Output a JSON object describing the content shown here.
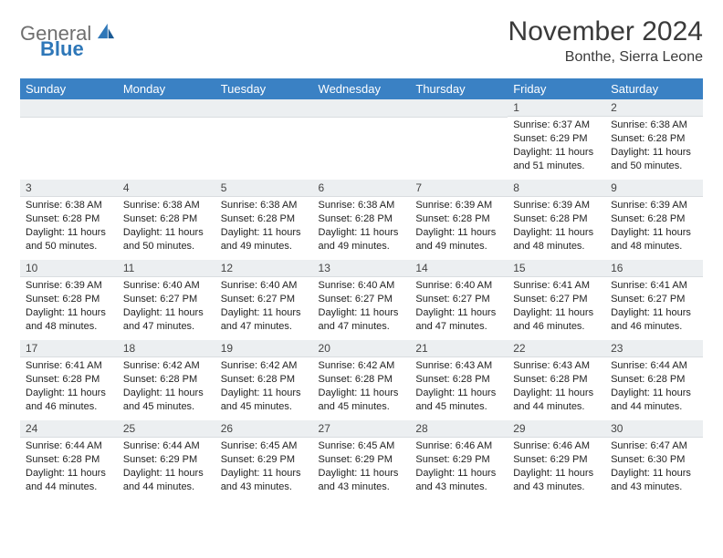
{
  "logo": {
    "word1": "General",
    "word2": "Blue"
  },
  "title": "November 2024",
  "subtitle": "Bonthe, Sierra Leone",
  "colors": {
    "header_bg": "#3a81c4",
    "header_text": "#ffffff",
    "daynum_bg": "#eceff1",
    "accent": "#2e77b8",
    "text": "#222222"
  },
  "weekdays": [
    "Sunday",
    "Monday",
    "Tuesday",
    "Wednesday",
    "Thursday",
    "Friday",
    "Saturday"
  ],
  "weeks": [
    [
      {
        "blank": true
      },
      {
        "blank": true
      },
      {
        "blank": true
      },
      {
        "blank": true
      },
      {
        "blank": true
      },
      {
        "day": "1",
        "sunrise": "Sunrise: 6:37 AM",
        "sunset": "Sunset: 6:29 PM",
        "day1": "Daylight: 11 hours",
        "day2": "and 51 minutes."
      },
      {
        "day": "2",
        "sunrise": "Sunrise: 6:38 AM",
        "sunset": "Sunset: 6:28 PM",
        "day1": "Daylight: 11 hours",
        "day2": "and 50 minutes."
      }
    ],
    [
      {
        "day": "3",
        "sunrise": "Sunrise: 6:38 AM",
        "sunset": "Sunset: 6:28 PM",
        "day1": "Daylight: 11 hours",
        "day2": "and 50 minutes."
      },
      {
        "day": "4",
        "sunrise": "Sunrise: 6:38 AM",
        "sunset": "Sunset: 6:28 PM",
        "day1": "Daylight: 11 hours",
        "day2": "and 50 minutes."
      },
      {
        "day": "5",
        "sunrise": "Sunrise: 6:38 AM",
        "sunset": "Sunset: 6:28 PM",
        "day1": "Daylight: 11 hours",
        "day2": "and 49 minutes."
      },
      {
        "day": "6",
        "sunrise": "Sunrise: 6:38 AM",
        "sunset": "Sunset: 6:28 PM",
        "day1": "Daylight: 11 hours",
        "day2": "and 49 minutes."
      },
      {
        "day": "7",
        "sunrise": "Sunrise: 6:39 AM",
        "sunset": "Sunset: 6:28 PM",
        "day1": "Daylight: 11 hours",
        "day2": "and 49 minutes."
      },
      {
        "day": "8",
        "sunrise": "Sunrise: 6:39 AM",
        "sunset": "Sunset: 6:28 PM",
        "day1": "Daylight: 11 hours",
        "day2": "and 48 minutes."
      },
      {
        "day": "9",
        "sunrise": "Sunrise: 6:39 AM",
        "sunset": "Sunset: 6:28 PM",
        "day1": "Daylight: 11 hours",
        "day2": "and 48 minutes."
      }
    ],
    [
      {
        "day": "10",
        "sunrise": "Sunrise: 6:39 AM",
        "sunset": "Sunset: 6:28 PM",
        "day1": "Daylight: 11 hours",
        "day2": "and 48 minutes."
      },
      {
        "day": "11",
        "sunrise": "Sunrise: 6:40 AM",
        "sunset": "Sunset: 6:27 PM",
        "day1": "Daylight: 11 hours",
        "day2": "and 47 minutes."
      },
      {
        "day": "12",
        "sunrise": "Sunrise: 6:40 AM",
        "sunset": "Sunset: 6:27 PM",
        "day1": "Daylight: 11 hours",
        "day2": "and 47 minutes."
      },
      {
        "day": "13",
        "sunrise": "Sunrise: 6:40 AM",
        "sunset": "Sunset: 6:27 PM",
        "day1": "Daylight: 11 hours",
        "day2": "and 47 minutes."
      },
      {
        "day": "14",
        "sunrise": "Sunrise: 6:40 AM",
        "sunset": "Sunset: 6:27 PM",
        "day1": "Daylight: 11 hours",
        "day2": "and 47 minutes."
      },
      {
        "day": "15",
        "sunrise": "Sunrise: 6:41 AM",
        "sunset": "Sunset: 6:27 PM",
        "day1": "Daylight: 11 hours",
        "day2": "and 46 minutes."
      },
      {
        "day": "16",
        "sunrise": "Sunrise: 6:41 AM",
        "sunset": "Sunset: 6:27 PM",
        "day1": "Daylight: 11 hours",
        "day2": "and 46 minutes."
      }
    ],
    [
      {
        "day": "17",
        "sunrise": "Sunrise: 6:41 AM",
        "sunset": "Sunset: 6:28 PM",
        "day1": "Daylight: 11 hours",
        "day2": "and 46 minutes."
      },
      {
        "day": "18",
        "sunrise": "Sunrise: 6:42 AM",
        "sunset": "Sunset: 6:28 PM",
        "day1": "Daylight: 11 hours",
        "day2": "and 45 minutes."
      },
      {
        "day": "19",
        "sunrise": "Sunrise: 6:42 AM",
        "sunset": "Sunset: 6:28 PM",
        "day1": "Daylight: 11 hours",
        "day2": "and 45 minutes."
      },
      {
        "day": "20",
        "sunrise": "Sunrise: 6:42 AM",
        "sunset": "Sunset: 6:28 PM",
        "day1": "Daylight: 11 hours",
        "day2": "and 45 minutes."
      },
      {
        "day": "21",
        "sunrise": "Sunrise: 6:43 AM",
        "sunset": "Sunset: 6:28 PM",
        "day1": "Daylight: 11 hours",
        "day2": "and 45 minutes."
      },
      {
        "day": "22",
        "sunrise": "Sunrise: 6:43 AM",
        "sunset": "Sunset: 6:28 PM",
        "day1": "Daylight: 11 hours",
        "day2": "and 44 minutes."
      },
      {
        "day": "23",
        "sunrise": "Sunrise: 6:44 AM",
        "sunset": "Sunset: 6:28 PM",
        "day1": "Daylight: 11 hours",
        "day2": "and 44 minutes."
      }
    ],
    [
      {
        "day": "24",
        "sunrise": "Sunrise: 6:44 AM",
        "sunset": "Sunset: 6:28 PM",
        "day1": "Daylight: 11 hours",
        "day2": "and 44 minutes."
      },
      {
        "day": "25",
        "sunrise": "Sunrise: 6:44 AM",
        "sunset": "Sunset: 6:29 PM",
        "day1": "Daylight: 11 hours",
        "day2": "and 44 minutes."
      },
      {
        "day": "26",
        "sunrise": "Sunrise: 6:45 AM",
        "sunset": "Sunset: 6:29 PM",
        "day1": "Daylight: 11 hours",
        "day2": "and 43 minutes."
      },
      {
        "day": "27",
        "sunrise": "Sunrise: 6:45 AM",
        "sunset": "Sunset: 6:29 PM",
        "day1": "Daylight: 11 hours",
        "day2": "and 43 minutes."
      },
      {
        "day": "28",
        "sunrise": "Sunrise: 6:46 AM",
        "sunset": "Sunset: 6:29 PM",
        "day1": "Daylight: 11 hours",
        "day2": "and 43 minutes."
      },
      {
        "day": "29",
        "sunrise": "Sunrise: 6:46 AM",
        "sunset": "Sunset: 6:29 PM",
        "day1": "Daylight: 11 hours",
        "day2": "and 43 minutes."
      },
      {
        "day": "30",
        "sunrise": "Sunrise: 6:47 AM",
        "sunset": "Sunset: 6:30 PM",
        "day1": "Daylight: 11 hours",
        "day2": "and 43 minutes."
      }
    ]
  ]
}
